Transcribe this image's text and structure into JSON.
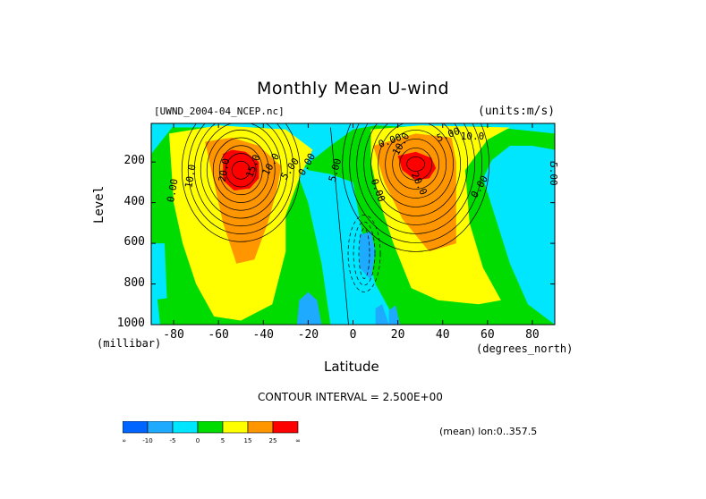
{
  "chart_data": {
    "type": "heatmap",
    "title": "Monthly Mean U-wind",
    "dataset_label": "[UWND_2004-04_NCEP.nc]",
    "units_label": "(units:m/s)",
    "xlabel": "Latitude",
    "x_units": "(degrees_north)",
    "ylabel": "Level",
    "y_units": "(millibar)",
    "xlim": [
      -90,
      90
    ],
    "ylim": [
      1000,
      10
    ],
    "x_ticks": [
      -80,
      -60,
      -40,
      -20,
      0,
      20,
      40,
      60,
      80
    ],
    "y_ticks": [
      200,
      400,
      600,
      800,
      1000
    ],
    "contour_interval_label": "CONTOUR INTERVAL = 2.500E+00",
    "mean_label": "(mean) lon:0..357.5",
    "color_levels": [
      {
        "from": "-inf",
        "to": -10,
        "color": "#0064ff"
      },
      {
        "from": -10,
        "to": -5,
        "color": "#1eaaff"
      },
      {
        "from": -5,
        "to": 0,
        "color": "#00e6ff"
      },
      {
        "from": 0,
        "to": 5,
        "color": "#00dc00"
      },
      {
        "from": 5,
        "to": 15,
        "color": "#ffff00"
      },
      {
        "from": 15,
        "to": 25,
        "color": "#ff9600"
      },
      {
        "from": 25,
        "to": "inf",
        "color": "#ff0000"
      }
    ],
    "colorbar_labels": [
      "-∞",
      "-10",
      "-5",
      "0",
      "5",
      "15",
      "25",
      "∞"
    ],
    "contour_labels": [
      "10.0",
      "20.0",
      "15.0",
      "10.0",
      "5.00",
      "0.00",
      "5.00",
      "0.00",
      "10.0",
      "20.0",
      "10.0",
      "5.00",
      "0.00",
      "0.00",
      "0.00",
      "5.00"
    ],
    "jets": [
      {
        "hemisphere": "south",
        "center_lat": -50,
        "center_level": 250,
        "max_speed": 27.5
      },
      {
        "hemisphere": "north",
        "center_lat": 27,
        "center_level": 200,
        "max_speed": 30
      }
    ]
  }
}
